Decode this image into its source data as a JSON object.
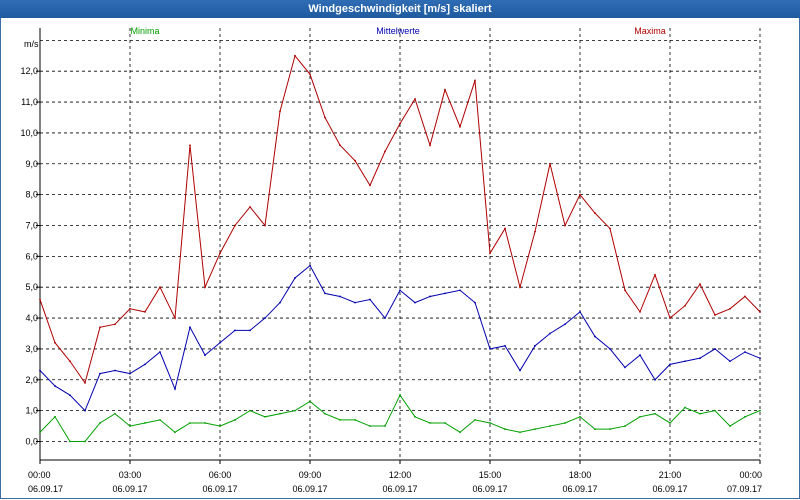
{
  "window": {
    "title": "Windgeschwindigkeit [m/s] skaliert"
  },
  "chart_data": {
    "type": "line",
    "title": "Windgeschwindigkeit [m/s] skaliert",
    "ylabel": "m/s",
    "ylim": [
      -0.6,
      13.4
    ],
    "grid": true,
    "legend_placement": "top",
    "y_ticks": [
      "0,0",
      "1,0",
      "2,0",
      "3,0",
      "4,0",
      "5,0",
      "6,0",
      "7,0",
      "8,0",
      "9,0",
      "10,0",
      "11,0",
      "12,0"
    ],
    "x_ticks": [
      {
        "time": "00:00",
        "date": "06.09.17"
      },
      {
        "time": "03:00",
        "date": "06.09.17"
      },
      {
        "time": "06:00",
        "date": "06.09.17"
      },
      {
        "time": "09:00",
        "date": "06.09.17"
      },
      {
        "time": "12:00",
        "date": "06.09.17"
      },
      {
        "time": "15:00",
        "date": "06.09.17"
      },
      {
        "time": "18:00",
        "date": "06.09.17"
      },
      {
        "time": "21:00",
        "date": "06.09.17"
      },
      {
        "time": "00:00",
        "date": "07.09.17"
      }
    ],
    "x_hours": [
      0,
      0.5,
      1,
      1.5,
      2,
      2.5,
      3,
      3.5,
      4,
      4.5,
      5,
      5.5,
      6,
      6.5,
      7,
      7.5,
      8,
      8.5,
      9,
      9.5,
      10,
      10.5,
      11,
      11.5,
      12,
      12.5,
      13,
      13.5,
      14,
      14.5,
      15,
      15.5,
      16,
      16.5,
      17,
      17.5,
      18,
      18.5,
      19,
      19.5,
      20,
      20.5,
      21,
      21.5,
      22,
      22.5,
      23,
      23.5,
      24
    ],
    "series": [
      {
        "name": "Minima",
        "color": "#00a000",
        "values": [
          0.3,
          0.8,
          0.0,
          0.0,
          0.6,
          0.9,
          0.5,
          0.6,
          0.7,
          0.3,
          0.6,
          0.6,
          0.5,
          0.7,
          1.0,
          0.8,
          0.9,
          1.0,
          1.3,
          0.9,
          0.7,
          0.7,
          0.5,
          0.5,
          1.5,
          0.8,
          0.6,
          0.6,
          0.3,
          0.7,
          0.6,
          0.4,
          0.3,
          0.4,
          0.5,
          0.6,
          0.8,
          0.4,
          0.4,
          0.5,
          0.8,
          0.9,
          0.6,
          1.1,
          0.9,
          1.0,
          0.5,
          0.8,
          1.0
        ]
      },
      {
        "name": "Mittelwerte",
        "color": "#0000b0",
        "values": [
          2.3,
          1.8,
          1.5,
          1.0,
          2.2,
          2.3,
          2.2,
          2.5,
          2.9,
          1.7,
          3.7,
          2.8,
          3.2,
          3.6,
          3.6,
          4.0,
          4.5,
          5.3,
          5.7,
          4.8,
          4.7,
          4.5,
          4.6,
          4.0,
          4.9,
          4.5,
          4.7,
          4.8,
          4.9,
          4.5,
          3.0,
          3.1,
          2.3,
          3.1,
          3.5,
          3.8,
          4.2,
          3.4,
          3.0,
          2.4,
          2.8,
          2.0,
          2.5,
          2.6,
          2.7,
          3.0,
          2.6,
          2.9,
          2.7
        ]
      },
      {
        "name": "Maxima",
        "color": "#b00000",
        "values": [
          4.6,
          3.2,
          2.6,
          1.9,
          3.7,
          3.8,
          4.3,
          4.2,
          5.0,
          4.0,
          9.6,
          5.0,
          6.1,
          7.0,
          7.6,
          7.0,
          10.7,
          12.5,
          11.9,
          10.5,
          9.6,
          9.1,
          8.3,
          9.4,
          10.3,
          11.1,
          9.6,
          11.4,
          10.2,
          11.7,
          6.1,
          6.9,
          5.0,
          6.8,
          9.0,
          7.0,
          8.0,
          7.4,
          6.9,
          4.9,
          4.2,
          5.4,
          4.0,
          4.4,
          5.1,
          4.1,
          4.3,
          4.7,
          4.2
        ]
      }
    ]
  }
}
